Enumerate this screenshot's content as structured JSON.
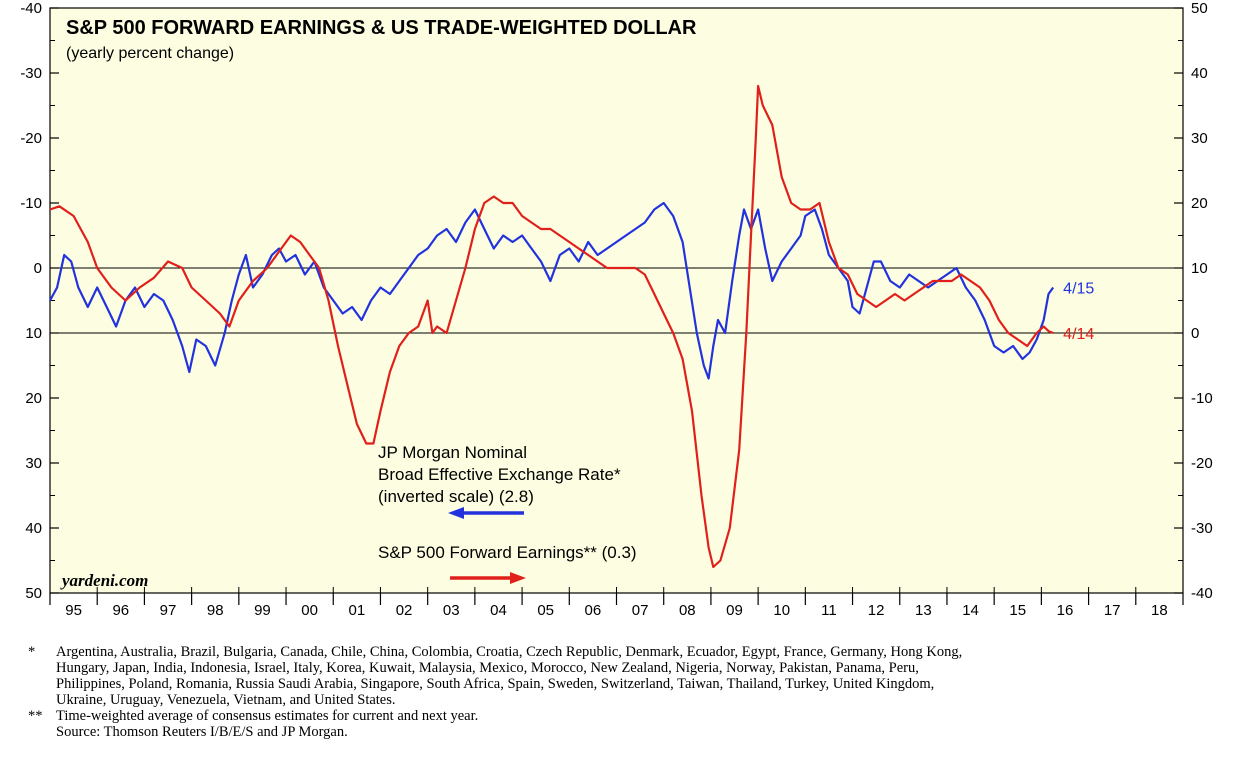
{
  "chart_data": {
    "type": "line",
    "title": "S&P 500 FORWARD EARNINGS & US TRADE-WEIGHTED DOLLAR",
    "subtitle": "(yearly percent change)",
    "brand": "yardeni.com",
    "x_range": [
      1995,
      2019
    ],
    "x_tick_labels": [
      "95",
      "96",
      "97",
      "98",
      "99",
      "00",
      "01",
      "02",
      "03",
      "04",
      "05",
      "06",
      "07",
      "08",
      "09",
      "10",
      "11",
      "12",
      "13",
      "14",
      "15",
      "16",
      "17",
      "18"
    ],
    "left_axis": {
      "range": [
        -40,
        50
      ],
      "inverted": true,
      "ticks": [
        -40,
        -30,
        -20,
        -10,
        0,
        10,
        20,
        30,
        40,
        50
      ],
      "tick_labels": [
        "-40",
        "-30",
        "-20",
        "-10",
        "0",
        "10",
        "20",
        "30",
        "40",
        "50"
      ]
    },
    "right_axis": {
      "range": [
        -40,
        50
      ],
      "ticks": [
        50,
        40,
        30,
        20,
        10,
        0,
        -10,
        -20,
        -30,
        -40
      ],
      "tick_labels": [
        "50",
        "40",
        "30",
        "20",
        "10",
        "0",
        "-10",
        "-20",
        "-30",
        "-40"
      ]
    },
    "reference_lines": {
      "left_zero": 0,
      "right_zero": 0
    },
    "series": [
      {
        "name": "JP Morgan Nominal Broad Effective Exchange Rate (inverted scale)",
        "axis": "left",
        "color": "#2233dd",
        "end_label": "4/15",
        "points": [
          [
            1995.0,
            5.0
          ],
          [
            1995.15,
            3.0
          ],
          [
            1995.3,
            -2.0
          ],
          [
            1995.45,
            -1.0
          ],
          [
            1995.6,
            3.0
          ],
          [
            1995.8,
            6.0
          ],
          [
            1996.0,
            3.0
          ],
          [
            1996.2,
            6.0
          ],
          [
            1996.4,
            9.0
          ],
          [
            1996.6,
            5.0
          ],
          [
            1996.8,
            3.0
          ],
          [
            1997.0,
            6.0
          ],
          [
            1997.2,
            4.0
          ],
          [
            1997.4,
            5.0
          ],
          [
            1997.6,
            8.0
          ],
          [
            1997.8,
            12.0
          ],
          [
            1997.95,
            16.0
          ],
          [
            1998.1,
            11.0
          ],
          [
            1998.3,
            12.0
          ],
          [
            1998.5,
            15.0
          ],
          [
            1998.7,
            10.0
          ],
          [
            1998.85,
            5.0
          ],
          [
            1999.0,
            1.0
          ],
          [
            1999.15,
            -2.0
          ],
          [
            1999.3,
            3.0
          ],
          [
            1999.5,
            1.0
          ],
          [
            1999.7,
            -2.0
          ],
          [
            1999.85,
            -3.0
          ],
          [
            2000.0,
            -1.0
          ],
          [
            2000.2,
            -2.0
          ],
          [
            2000.4,
            1.0
          ],
          [
            2000.6,
            -1.0
          ],
          [
            2000.8,
            3.0
          ],
          [
            2001.0,
            5.0
          ],
          [
            2001.2,
            7.0
          ],
          [
            2001.4,
            6.0
          ],
          [
            2001.6,
            8.0
          ],
          [
            2001.8,
            5.0
          ],
          [
            2002.0,
            3.0
          ],
          [
            2002.2,
            4.0
          ],
          [
            2002.4,
            2.0
          ],
          [
            2002.6,
            0.0
          ],
          [
            2002.8,
            -2.0
          ],
          [
            2003.0,
            -3.0
          ],
          [
            2003.2,
            -5.0
          ],
          [
            2003.4,
            -6.0
          ],
          [
            2003.6,
            -4.0
          ],
          [
            2003.8,
            -7.0
          ],
          [
            2004.0,
            -9.0
          ],
          [
            2004.2,
            -6.0
          ],
          [
            2004.4,
            -3.0
          ],
          [
            2004.6,
            -5.0
          ],
          [
            2004.8,
            -4.0
          ],
          [
            2005.0,
            -5.0
          ],
          [
            2005.2,
            -3.0
          ],
          [
            2005.4,
            -1.0
          ],
          [
            2005.6,
            2.0
          ],
          [
            2005.8,
            -2.0
          ],
          [
            2006.0,
            -3.0
          ],
          [
            2006.2,
            -1.0
          ],
          [
            2006.4,
            -4.0
          ],
          [
            2006.6,
            -2.0
          ],
          [
            2006.8,
            -3.0
          ],
          [
            2007.0,
            -4.0
          ],
          [
            2007.2,
            -5.0
          ],
          [
            2007.4,
            -6.0
          ],
          [
            2007.6,
            -7.0
          ],
          [
            2007.8,
            -9.0
          ],
          [
            2008.0,
            -10.0
          ],
          [
            2008.2,
            -8.0
          ],
          [
            2008.4,
            -4.0
          ],
          [
            2008.55,
            3.0
          ],
          [
            2008.7,
            10.0
          ],
          [
            2008.85,
            15.0
          ],
          [
            2008.95,
            17.0
          ],
          [
            2009.05,
            12.0
          ],
          [
            2009.15,
            8.0
          ],
          [
            2009.3,
            10.0
          ],
          [
            2009.45,
            2.0
          ],
          [
            2009.6,
            -5.0
          ],
          [
            2009.7,
            -9.0
          ],
          [
            2009.85,
            -6.0
          ],
          [
            2010.0,
            -9.0
          ],
          [
            2010.15,
            -3.0
          ],
          [
            2010.3,
            2.0
          ],
          [
            2010.5,
            -1.0
          ],
          [
            2010.7,
            -3.0
          ],
          [
            2010.9,
            -5.0
          ],
          [
            2011.0,
            -8.0
          ],
          [
            2011.2,
            -9.0
          ],
          [
            2011.35,
            -6.0
          ],
          [
            2011.5,
            -2.0
          ],
          [
            2011.7,
            0.0
          ],
          [
            2011.9,
            2.0
          ],
          [
            2012.0,
            6.0
          ],
          [
            2012.15,
            7.0
          ],
          [
            2012.3,
            3.0
          ],
          [
            2012.45,
            -1.0
          ],
          [
            2012.6,
            -1.0
          ],
          [
            2012.8,
            2.0
          ],
          [
            2013.0,
            3.0
          ],
          [
            2013.2,
            1.0
          ],
          [
            2013.4,
            2.0
          ],
          [
            2013.6,
            3.0
          ],
          [
            2013.8,
            2.0
          ],
          [
            2014.0,
            1.0
          ],
          [
            2014.2,
            0.0
          ],
          [
            2014.4,
            3.0
          ],
          [
            2014.6,
            5.0
          ],
          [
            2014.8,
            8.0
          ],
          [
            2015.0,
            12.0
          ],
          [
            2015.2,
            13.0
          ],
          [
            2015.4,
            12.0
          ],
          [
            2015.6,
            14.0
          ],
          [
            2015.75,
            13.0
          ],
          [
            2015.9,
            11.0
          ],
          [
            2016.05,
            8.0
          ],
          [
            2016.15,
            4.0
          ],
          [
            2016.25,
            3.0
          ]
        ]
      },
      {
        "name": "S&P 500 Forward Earnings",
        "axis": "right",
        "color": "#e0201b",
        "end_label": "4/14",
        "points": [
          [
            1995.0,
            19.0
          ],
          [
            1995.2,
            19.5
          ],
          [
            1995.5,
            18.0
          ],
          [
            1995.8,
            14.0
          ],
          [
            1996.0,
            10.0
          ],
          [
            1996.3,
            7.0
          ],
          [
            1996.6,
            5.0
          ],
          [
            1996.9,
            7.0
          ],
          [
            1997.2,
            8.5
          ],
          [
            1997.5,
            11.0
          ],
          [
            1997.8,
            10.0
          ],
          [
            1998.0,
            7.0
          ],
          [
            1998.3,
            5.0
          ],
          [
            1998.6,
            3.0
          ],
          [
            1998.8,
            1.0
          ],
          [
            1999.0,
            5.0
          ],
          [
            1999.3,
            8.0
          ],
          [
            1999.6,
            10.0
          ],
          [
            1999.9,
            13.0
          ],
          [
            2000.1,
            15.0
          ],
          [
            2000.3,
            14.0
          ],
          [
            2000.5,
            12.0
          ],
          [
            2000.7,
            10.0
          ],
          [
            2000.9,
            5.0
          ],
          [
            2001.1,
            -2.0
          ],
          [
            2001.3,
            -8.0
          ],
          [
            2001.5,
            -14.0
          ],
          [
            2001.7,
            -17.0
          ],
          [
            2001.85,
            -17.0
          ],
          [
            2002.0,
            -12.0
          ],
          [
            2002.2,
            -6.0
          ],
          [
            2002.4,
            -2.0
          ],
          [
            2002.6,
            0.0
          ],
          [
            2002.8,
            1.0
          ],
          [
            2003.0,
            5.0
          ],
          [
            2003.1,
            0.0
          ],
          [
            2003.2,
            1.0
          ],
          [
            2003.4,
            0.0
          ],
          [
            2003.6,
            5.0
          ],
          [
            2003.8,
            10.0
          ],
          [
            2004.0,
            16.0
          ],
          [
            2004.2,
            20.0
          ],
          [
            2004.4,
            21.0
          ],
          [
            2004.6,
            20.0
          ],
          [
            2004.8,
            20.0
          ],
          [
            2005.0,
            18.0
          ],
          [
            2005.2,
            17.0
          ],
          [
            2005.4,
            16.0
          ],
          [
            2005.6,
            16.0
          ],
          [
            2005.8,
            15.0
          ],
          [
            2006.0,
            14.0
          ],
          [
            2006.2,
            13.0
          ],
          [
            2006.4,
            12.0
          ],
          [
            2006.6,
            11.0
          ],
          [
            2006.8,
            10.0
          ],
          [
            2007.0,
            10.0
          ],
          [
            2007.2,
            10.0
          ],
          [
            2007.4,
            10.0
          ],
          [
            2007.6,
            9.0
          ],
          [
            2007.8,
            6.0
          ],
          [
            2008.0,
            3.0
          ],
          [
            2008.2,
            0.0
          ],
          [
            2008.4,
            -4.0
          ],
          [
            2008.6,
            -12.0
          ],
          [
            2008.8,
            -25.0
          ],
          [
            2008.95,
            -33.0
          ],
          [
            2009.05,
            -36.0
          ],
          [
            2009.2,
            -35.0
          ],
          [
            2009.4,
            -30.0
          ],
          [
            2009.6,
            -18.0
          ],
          [
            2009.75,
            0.0
          ],
          [
            2009.85,
            15.0
          ],
          [
            2009.95,
            30.0
          ],
          [
            2010.0,
            38.0
          ],
          [
            2010.1,
            35.0
          ],
          [
            2010.3,
            32.0
          ],
          [
            2010.5,
            24.0
          ],
          [
            2010.7,
            20.0
          ],
          [
            2010.9,
            19.0
          ],
          [
            2011.1,
            19.0
          ],
          [
            2011.3,
            20.0
          ],
          [
            2011.5,
            14.0
          ],
          [
            2011.7,
            10.0
          ],
          [
            2011.9,
            9.0
          ],
          [
            2012.1,
            6.0
          ],
          [
            2012.3,
            5.0
          ],
          [
            2012.5,
            4.0
          ],
          [
            2012.7,
            5.0
          ],
          [
            2012.9,
            6.0
          ],
          [
            2013.1,
            5.0
          ],
          [
            2013.3,
            6.0
          ],
          [
            2013.5,
            7.0
          ],
          [
            2013.7,
            8.0
          ],
          [
            2013.9,
            8.0
          ],
          [
            2014.1,
            8.0
          ],
          [
            2014.3,
            9.0
          ],
          [
            2014.5,
            8.0
          ],
          [
            2014.7,
            7.0
          ],
          [
            2014.9,
            5.0
          ],
          [
            2015.1,
            2.0
          ],
          [
            2015.3,
            0.0
          ],
          [
            2015.5,
            -1.0
          ],
          [
            2015.7,
            -2.0
          ],
          [
            2015.9,
            0.0
          ],
          [
            2016.05,
            1.0
          ],
          [
            2016.15,
            0.3
          ],
          [
            2016.25,
            0.0
          ]
        ]
      }
    ],
    "annotations": {
      "dollar_label_lines": [
        "JP Morgan Nominal",
        "Broad Effective Exchange Rate*",
        "(inverted scale) (2.8)"
      ],
      "earnings_label": "S&P 500 Forward Earnings** (0.3)",
      "dollar_arrow_direction": "left",
      "earnings_arrow_direction": "right"
    }
  },
  "footnotes": {
    "note1_mark": "*",
    "note1_lines": [
      "Argentina, Australia, Brazil, Bulgaria, Canada, Chile, China, Colombia, Croatia, Czech Republic, Denmark, Ecuador, Egypt, France, Germany, Hong Kong,",
      "Hungary, Japan, India, Indonesia, Israel, Italy, Korea, Kuwait, Malaysia, Mexico, Morocco, New Zealand, Nigeria, Norway, Pakistan, Panama, Peru,",
      "Philippines, Poland, Romania, Russia Saudi Arabia, Singapore, South Africa, Spain, Sweden, Switzerland, Taiwan, Thailand, Turkey, United Kingdom,",
      "Ukraine, Uruguay, Venezuela, Vietnam, and United States."
    ],
    "note2_mark": "**",
    "note2_lines": [
      "Time-weighted average of consensus estimates for current and next year.",
      "Source: Thomson Reuters I/B/E/S and JP Morgan."
    ]
  }
}
